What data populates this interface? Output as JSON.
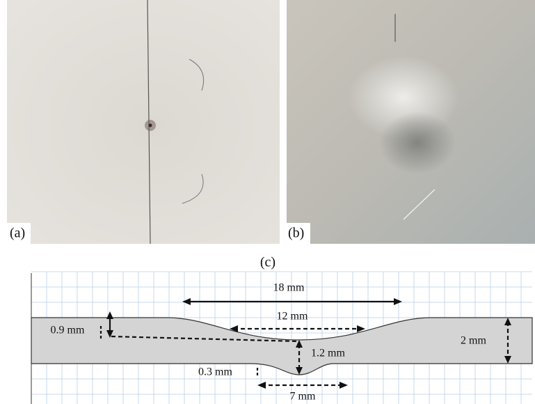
{
  "panels": [
    {
      "label": "(a)"
    },
    {
      "label": "(b)"
    }
  ],
  "diagram": {
    "label": "(c)",
    "dimensions": {
      "total_width": "18 mm",
      "inner_width": "12 mm",
      "side_depth": "0.9 mm",
      "center_depth": "1.2 mm",
      "thickness": "2 mm",
      "bottom_bulge": "0.3 mm",
      "bulge_width": "7 mm"
    }
  }
}
